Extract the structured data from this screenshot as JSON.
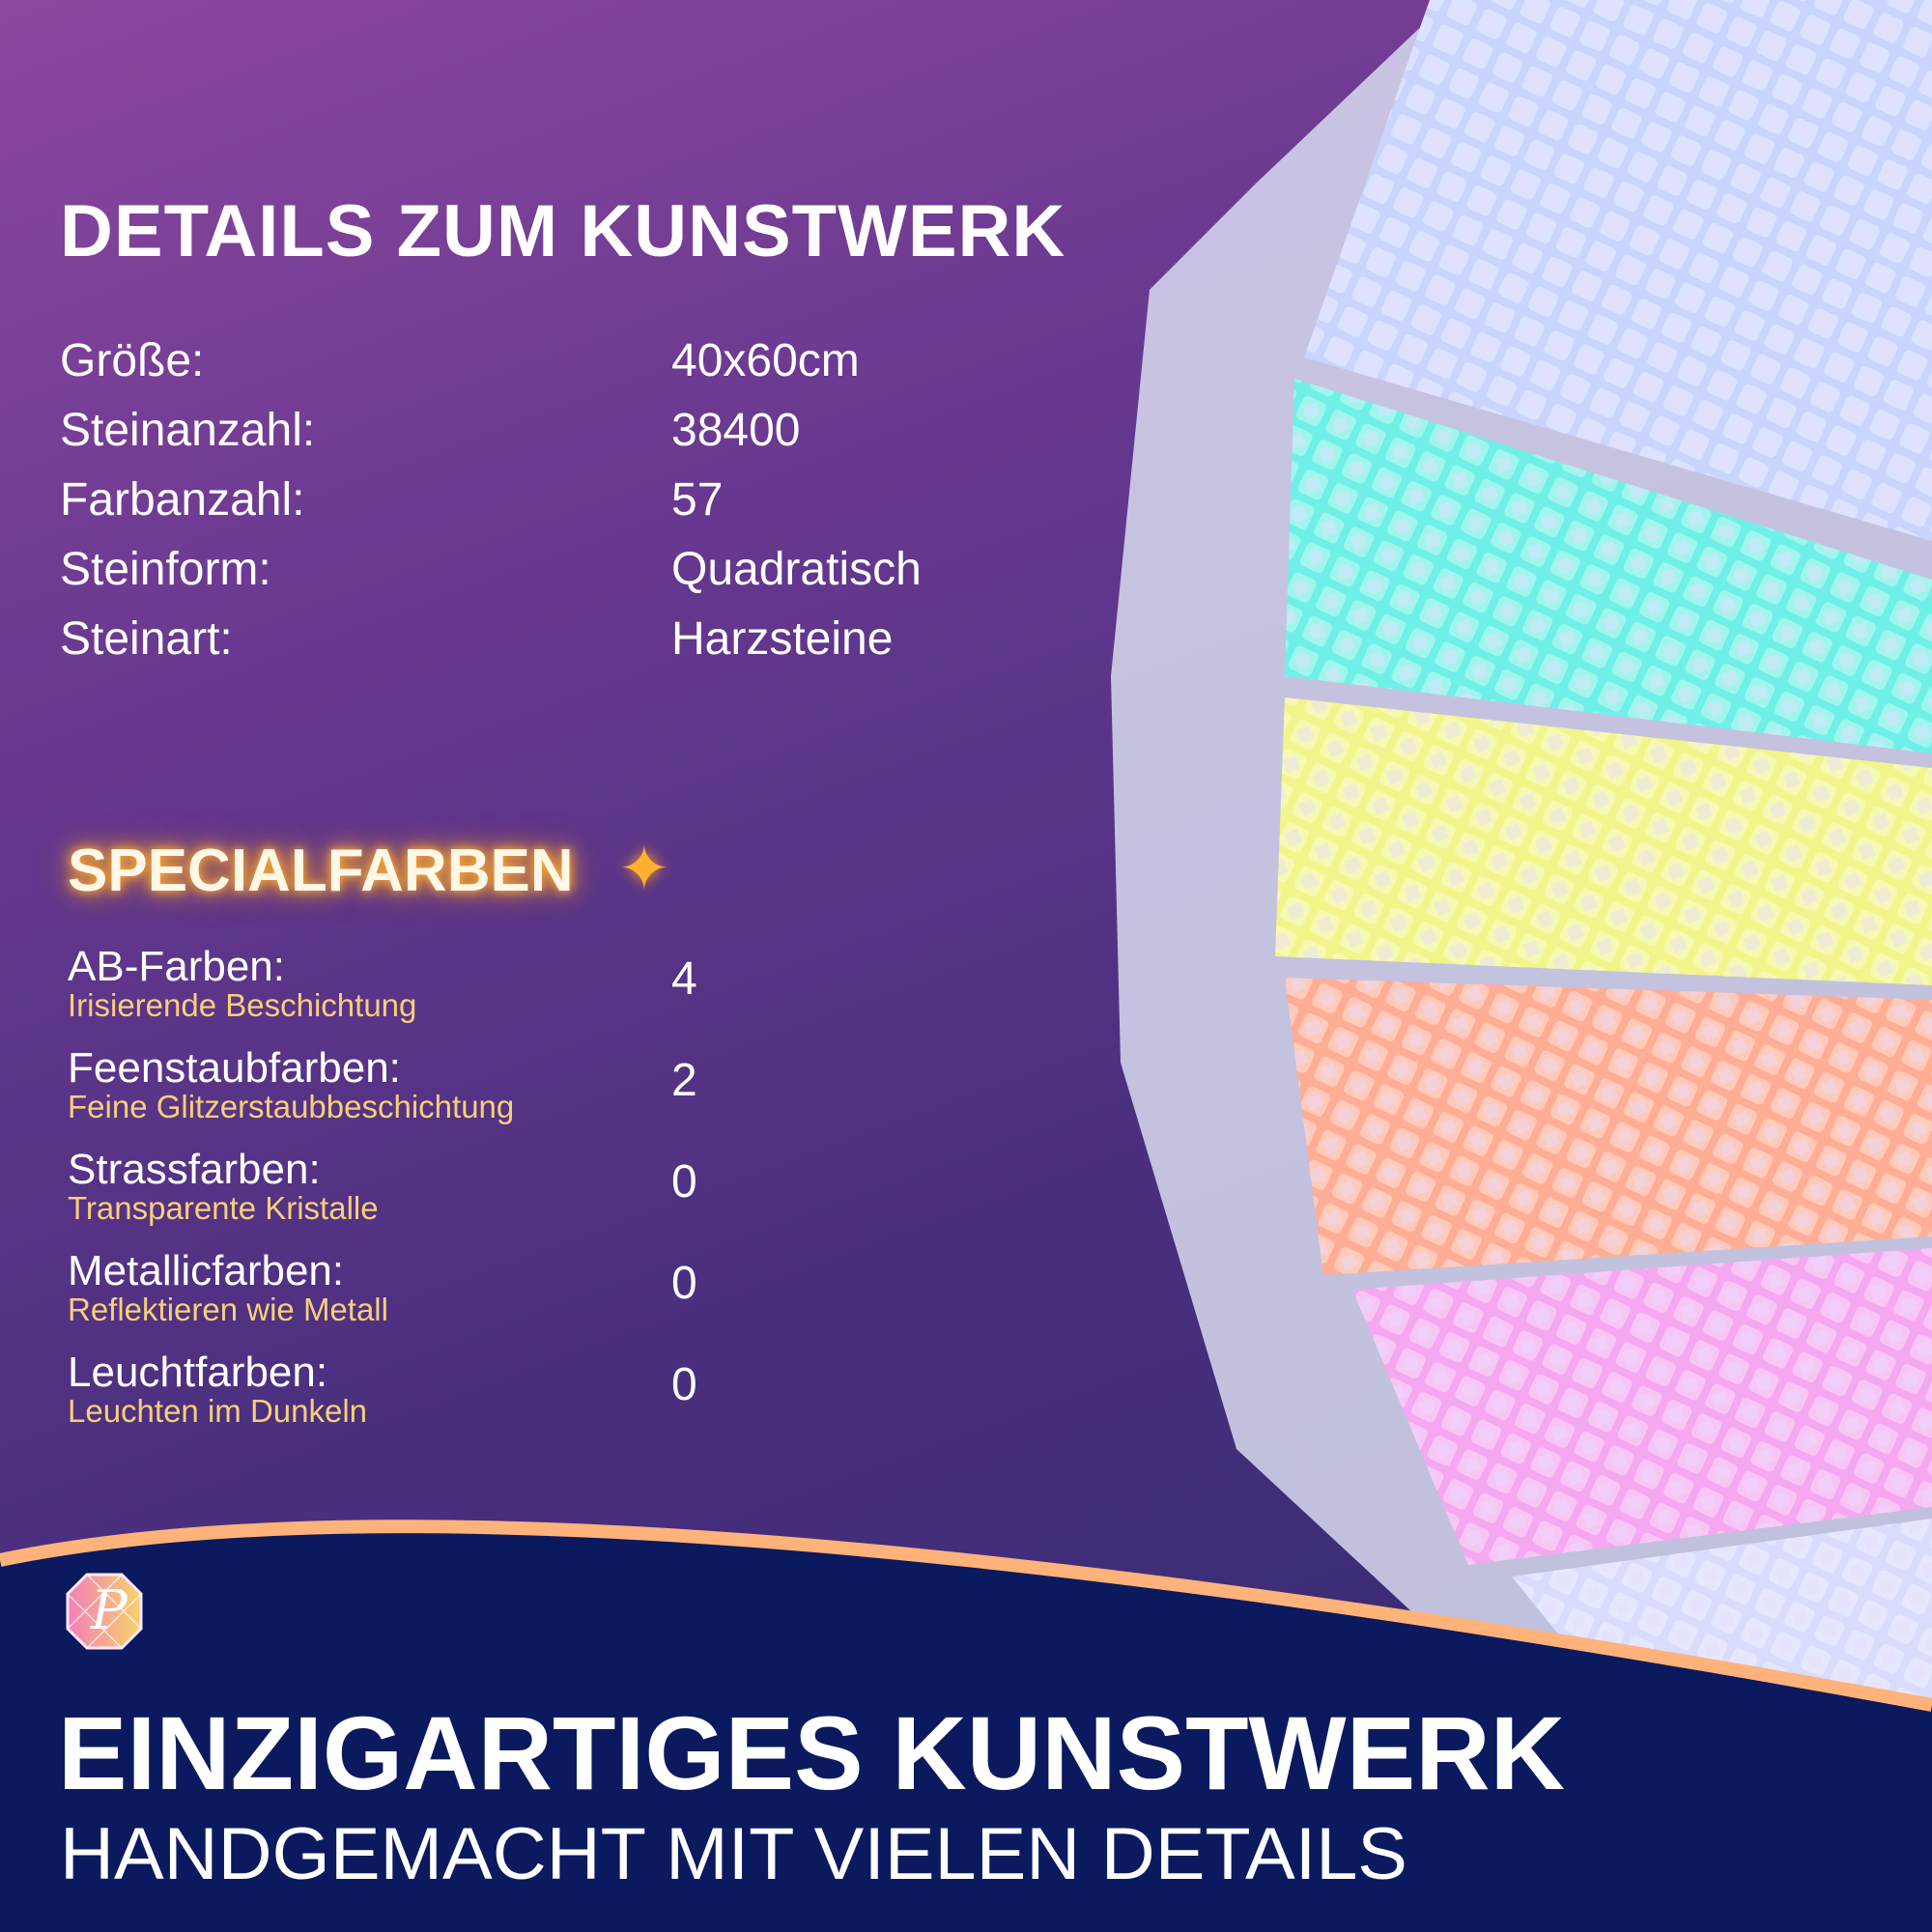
{
  "details": {
    "title": "DETAILS ZUM KUNSTWERK",
    "rows": [
      {
        "label": "Größe:",
        "value": "40x60cm"
      },
      {
        "label": "Steinanzahl:",
        "value": "38400"
      },
      {
        "label": "Farbanzahl:",
        "value": "57"
      },
      {
        "label": "Steinform:",
        "value": "Quadratisch"
      },
      {
        "label": "Steinart:",
        "value": "Harzsteine"
      }
    ]
  },
  "special": {
    "title": "SPECIALFARBEN",
    "icon": "sparkles-icon",
    "rows": [
      {
        "label": "AB-Farben:",
        "desc": "Irisierende Beschichtung",
        "value": "4"
      },
      {
        "label": "Feenstaubfarben:",
        "desc": "Feine Glitzerstaubbeschichtung",
        "value": "2"
      },
      {
        "label": "Strassfarben:",
        "desc": "Transparente Kristalle",
        "value": "0"
      },
      {
        "label": "Metallicfarben:",
        "desc": "Reflektieren wie Metall",
        "value": "0"
      },
      {
        "label": "Leuchtfarben:",
        "desc": "Leuchten im Dunkeln",
        "value": "0"
      }
    ]
  },
  "footer": {
    "headline": "EINZIGARTIGES KUNSTWERK",
    "subline": "HANDGEMACHT MIT VIELEN DETAILS",
    "logo_letter": "P"
  },
  "colors": {
    "navy": "#0b1a5e",
    "accent_orange": "#ffb27a",
    "subtitle_gold": "#f7cf7a",
    "bead_colors": [
      "#c9d4ff",
      "#6ff0e6",
      "#f2f58a",
      "#ffad95",
      "#f5a8f0",
      "#d9dcff"
    ]
  }
}
